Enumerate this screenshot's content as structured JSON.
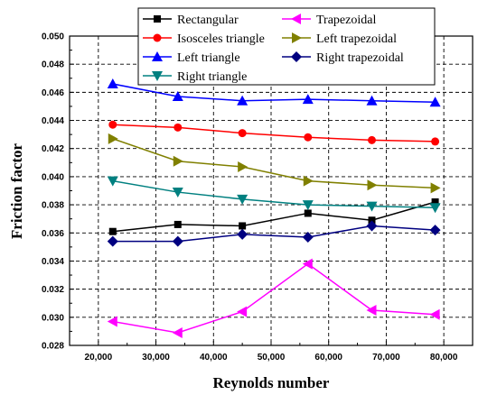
{
  "chart_data": {
    "type": "line",
    "title": "",
    "xlabel": "Reynolds number",
    "ylabel": "Friction factor",
    "xlim": [
      15000,
      85000
    ],
    "ylim": [
      0.028,
      0.05
    ],
    "xticks": [
      20000,
      30000,
      40000,
      50000,
      60000,
      70000,
      80000
    ],
    "xtick_labels": [
      "20,000",
      "30,000",
      "40,000",
      "50,000",
      "60,000",
      "70,000",
      "80,000"
    ],
    "yticks": [
      0.028,
      0.03,
      0.032,
      0.034,
      0.036,
      0.038,
      0.04,
      0.042,
      0.044,
      0.046,
      0.048,
      0.05
    ],
    "ytick_labels": [
      "0.028",
      "0.030",
      "0.032",
      "0.034",
      "0.036",
      "0.038",
      "0.040",
      "0.042",
      "0.044",
      "0.046",
      "0.048",
      "0.050"
    ],
    "grid": true,
    "legend_position": "top",
    "x": [
      22500,
      33800,
      45000,
      56400,
      67500,
      78500
    ],
    "series": [
      {
        "name": "Rectangular",
        "color": "#000000",
        "marker": "square",
        "values": [
          0.0361,
          0.0366,
          0.0365,
          0.0374,
          0.0369,
          0.0382
        ]
      },
      {
        "name": "Trapezoidal",
        "color": "#ff00ff",
        "marker": "triangle-left",
        "values": [
          0.0297,
          0.0289,
          0.0304,
          0.0338,
          0.0305,
          0.0302
        ]
      },
      {
        "name": "Isosceles triangle",
        "color": "#ff0000",
        "marker": "circle",
        "values": [
          0.0437,
          0.0435,
          0.0431,
          0.0428,
          0.0426,
          0.0425
        ]
      },
      {
        "name": "Left trapezoidal",
        "color": "#808000",
        "marker": "triangle-right",
        "values": [
          0.0427,
          0.0411,
          0.0407,
          0.0397,
          0.0394,
          0.0392
        ]
      },
      {
        "name": "Left triangle",
        "color": "#0000ff",
        "marker": "triangle-up",
        "values": [
          0.0466,
          0.0457,
          0.0454,
          0.0455,
          0.0454,
          0.0453
        ]
      },
      {
        "name": "Right trapezoidal",
        "color": "#000080",
        "marker": "diamond",
        "values": [
          0.0354,
          0.0354,
          0.0359,
          0.0357,
          0.0365,
          0.0362
        ]
      },
      {
        "name": "Right triangle",
        "color": "#008080",
        "marker": "triangle-down",
        "values": [
          0.0397,
          0.0389,
          0.0384,
          0.038,
          0.0379,
          0.0378
        ]
      }
    ]
  }
}
